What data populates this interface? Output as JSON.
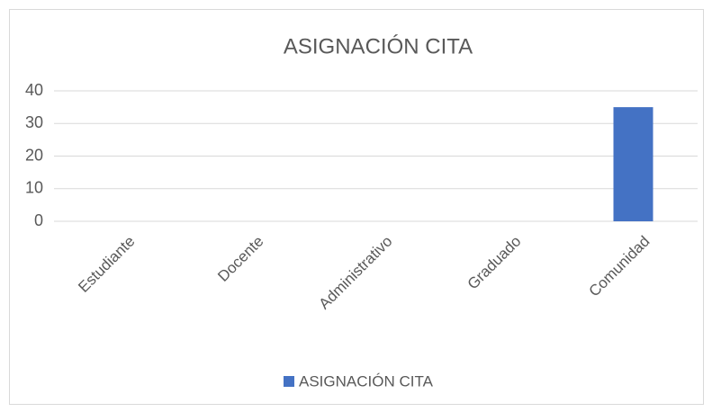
{
  "chart_data": {
    "type": "bar",
    "title": "ASIGNACIÓN CITA",
    "categories": [
      "Estudiante",
      "Docente",
      "Administrativo",
      "Graduado",
      "Comunidad"
    ],
    "series": [
      {
        "name": "ASIGNACIÓN CITA",
        "color": "#4472c4",
        "values": [
          0,
          0,
          0,
          0,
          35
        ]
      }
    ],
    "ylim": [
      0,
      40
    ],
    "yticks": [
      0,
      10,
      20,
      30,
      40
    ],
    "grid": true,
    "legend": "bottom"
  }
}
